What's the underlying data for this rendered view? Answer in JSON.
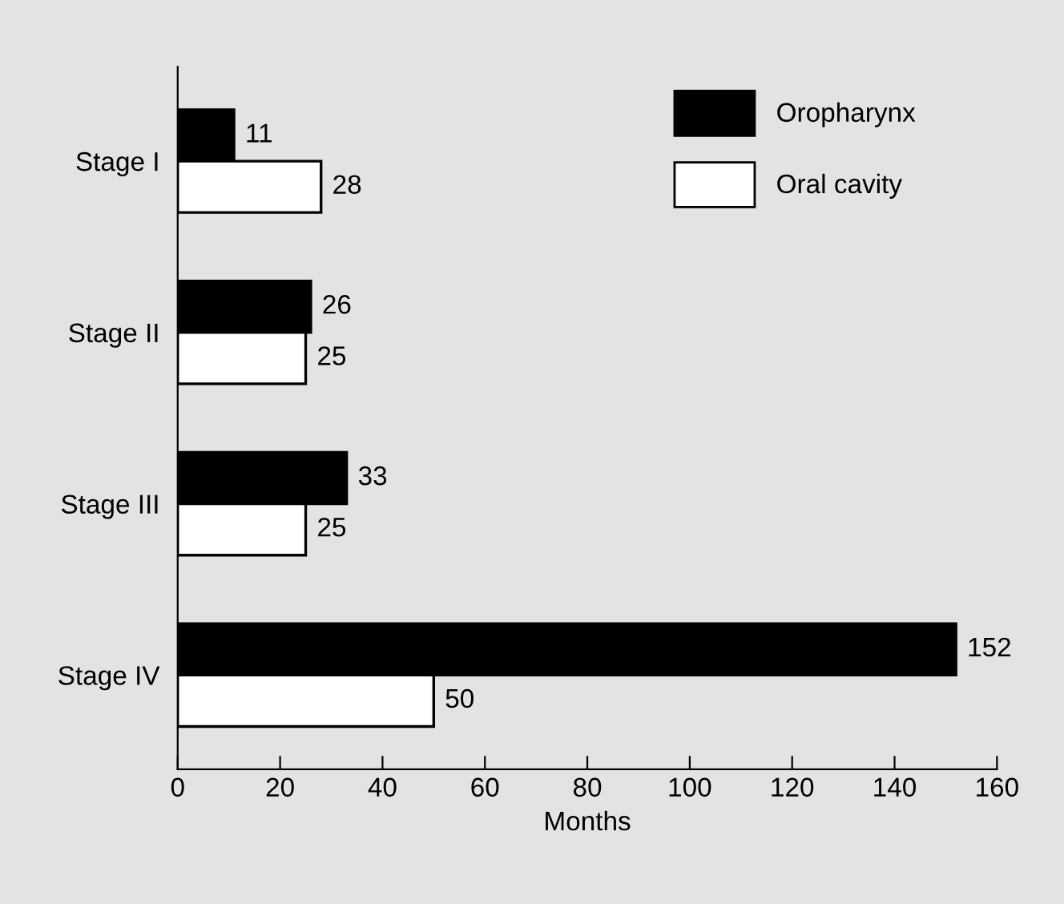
{
  "chart_data": {
    "type": "bar",
    "orientation": "horizontal",
    "xlabel": "Months",
    "categories": [
      "Stage I",
      "Stage II",
      "Stage III",
      "Stage IV"
    ],
    "series": [
      {
        "name": "Oropharynx",
        "color": "#000000",
        "values": [
          11,
          26,
          33,
          152
        ]
      },
      {
        "name": "Oral cavity",
        "color": "#ffffff",
        "values": [
          28,
          25,
          25,
          50
        ]
      }
    ],
    "xlim": [
      0,
      160
    ],
    "xticks": [
      0,
      20,
      40,
      60,
      80,
      100,
      120,
      140,
      160
    ],
    "data_labels": true,
    "legend": "top right",
    "grid": false
  }
}
